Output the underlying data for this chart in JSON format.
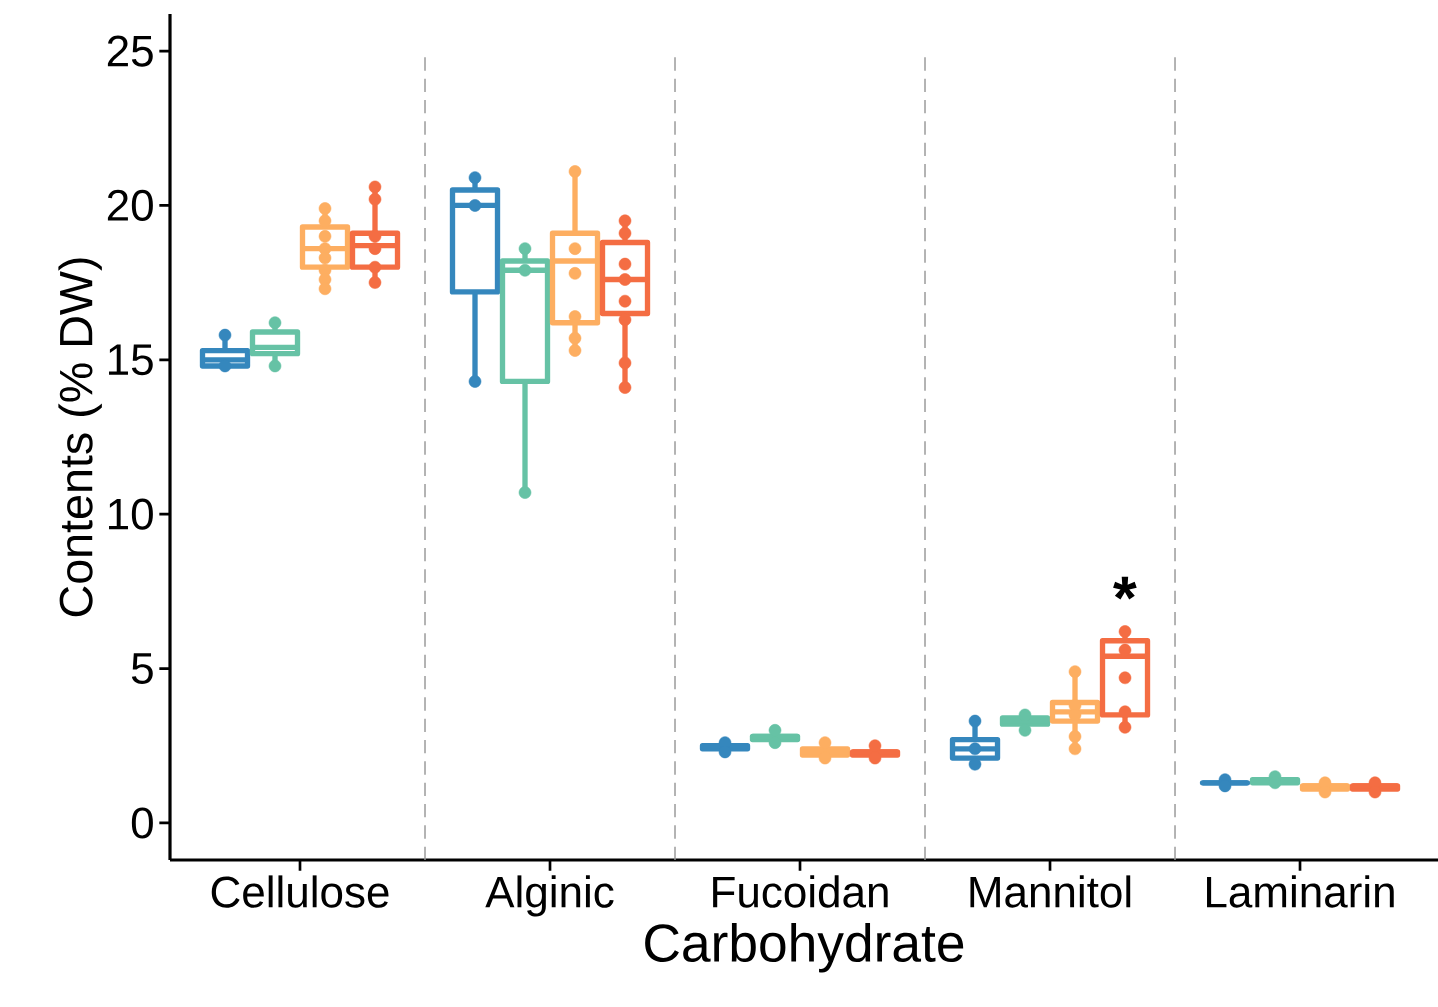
{
  "chart_data": {
    "type": "box",
    "xlabel": "Carbohydrate",
    "ylabel": "Contents (% DW)",
    "categories": [
      "Cellulose",
      "Alginic",
      "Fucoidan",
      "Mannitol",
      "Laminarin"
    ],
    "ylim": [
      -1.2,
      26.2
    ],
    "yticks": [
      0,
      5,
      10,
      15,
      20,
      25
    ],
    "marker": "circle",
    "series": [
      {
        "color": "#3587bd",
        "boxes": [
          {
            "low": 14.8,
            "q1": 14.8,
            "median": 15.0,
            "q3": 15.3,
            "high": 15.8
          },
          {
            "low": 14.3,
            "q1": 17.2,
            "median": 20.0,
            "q3": 20.5,
            "high": 20.9
          },
          {
            "low": 2.3,
            "q1": 2.4,
            "median": 2.5,
            "q3": 2.5,
            "high": 2.6
          },
          {
            "low": 1.9,
            "q1": 2.1,
            "median": 2.4,
            "q3": 2.7,
            "high": 3.3
          },
          {
            "low": 1.2,
            "q1": 1.3,
            "median": 1.3,
            "q3": 1.3,
            "high": 1.4
          }
        ]
      },
      {
        "color": "#66c2a5",
        "boxes": [
          {
            "low": 14.8,
            "q1": 15.2,
            "median": 15.4,
            "q3": 15.9,
            "high": 16.2
          },
          {
            "low": 10.7,
            "q1": 14.3,
            "median": 17.9,
            "q3": 18.2,
            "high": 18.6
          },
          {
            "low": 2.6,
            "q1": 2.7,
            "median": 2.8,
            "q3": 2.8,
            "high": 3.0
          },
          {
            "low": 3.0,
            "q1": 3.2,
            "median": 3.3,
            "q3": 3.4,
            "high": 3.5
          },
          {
            "low": 1.3,
            "q1": 1.3,
            "median": 1.4,
            "q3": 1.4,
            "high": 1.5
          }
        ]
      },
      {
        "color": "#fdae61",
        "boxes": [
          {
            "low": 17.3,
            "q1": 18.0,
            "median": 18.6,
            "q3": 19.3,
            "high": 19.9
          },
          {
            "low": 15.3,
            "q1": 16.2,
            "median": 18.2,
            "q3": 19.1,
            "high": 21.1
          },
          {
            "low": 2.1,
            "q1": 2.2,
            "median": 2.3,
            "q3": 2.4,
            "high": 2.6
          },
          {
            "low": 2.4,
            "q1": 3.3,
            "median": 3.6,
            "q3": 3.9,
            "high": 4.9
          },
          {
            "low": 1.0,
            "q1": 1.1,
            "median": 1.2,
            "q3": 1.2,
            "high": 1.3
          }
        ]
      },
      {
        "color": "#f46d43",
        "boxes": [
          {
            "low": 17.5,
            "q1": 18.0,
            "median": 18.7,
            "q3": 19.1,
            "high": 20.6
          },
          {
            "low": 14.1,
            "q1": 16.5,
            "median": 17.6,
            "q3": 18.8,
            "high": 19.5
          },
          {
            "low": 2.1,
            "q1": 2.2,
            "median": 2.3,
            "q3": 2.3,
            "high": 2.5
          },
          {
            "low": 3.1,
            "q1": 3.5,
            "median": 5.4,
            "q3": 5.9,
            "high": 6.2
          },
          {
            "low": 1.0,
            "q1": 1.1,
            "median": 1.2,
            "q3": 1.2,
            "high": 1.3
          }
        ]
      },
      {
        "type": "scatter",
        "color": "#3587bd",
        "x": [
          "Cellulose",
          "Cellulose",
          "Alginic",
          "Alginic",
          "Alginic",
          "Fucoidan",
          "Fucoidan",
          "Mannitol",
          "Mannitol",
          "Mannitol",
          "Laminarin",
          "Laminarin"
        ],
        "values": [
          15.8,
          14.8,
          20.9,
          20.0,
          14.3,
          2.6,
          2.3,
          3.3,
          2.4,
          1.9,
          1.4,
          1.2
        ]
      },
      {
        "type": "scatter",
        "color": "#66c2a5",
        "x": [
          "Cellulose",
          "Cellulose",
          "Alginic",
          "Alginic",
          "Alginic",
          "Fucoidan",
          "Fucoidan",
          "Mannitol",
          "Mannitol",
          "Laminarin",
          "Laminarin"
        ],
        "values": [
          16.2,
          14.8,
          18.6,
          17.9,
          10.7,
          3.0,
          2.6,
          3.5,
          3.0,
          1.5,
          1.3
        ]
      },
      {
        "type": "scatter",
        "color": "#fdae61",
        "x": [
          "Cellulose",
          "Cellulose",
          "Cellulose",
          "Cellulose",
          "Cellulose",
          "Cellulose",
          "Cellulose",
          "Cellulose",
          "Alginic",
          "Alginic",
          "Alginic",
          "Alginic",
          "Alginic",
          "Alginic",
          "Fucoidan",
          "Fucoidan",
          "Mannitol",
          "Mannitol",
          "Mannitol",
          "Mannitol",
          "Mannitol",
          "Laminarin",
          "Laminarin"
        ],
        "values": [
          19.9,
          19.5,
          19.0,
          18.6,
          18.3,
          17.9,
          17.6,
          17.3,
          21.1,
          18.6,
          17.8,
          16.4,
          15.7,
          15.3,
          2.6,
          2.1,
          4.9,
          3.8,
          3.5,
          2.8,
          2.4,
          1.3,
          1.0
        ]
      },
      {
        "type": "scatter",
        "color": "#f46d43",
        "x": [
          "Cellulose",
          "Cellulose",
          "Cellulose",
          "Cellulose",
          "Cellulose",
          "Cellulose",
          "Alginic",
          "Alginic",
          "Alginic",
          "Alginic",
          "Alginic",
          "Alginic",
          "Alginic",
          "Alginic",
          "Fucoidan",
          "Fucoidan",
          "Mannitol",
          "Mannitol",
          "Mannitol",
          "Mannitol",
          "Mannitol",
          "Laminarin",
          "Laminarin"
        ],
        "values": [
          20.6,
          20.2,
          19.0,
          18.6,
          18.0,
          17.5,
          19.5,
          19.1,
          18.1,
          17.6,
          16.9,
          16.3,
          14.9,
          14.1,
          2.5,
          2.1,
          6.2,
          5.6,
          4.7,
          3.6,
          3.1,
          1.3,
          1.0
        ]
      }
    ],
    "annotations": [
      "*"
    ]
  }
}
